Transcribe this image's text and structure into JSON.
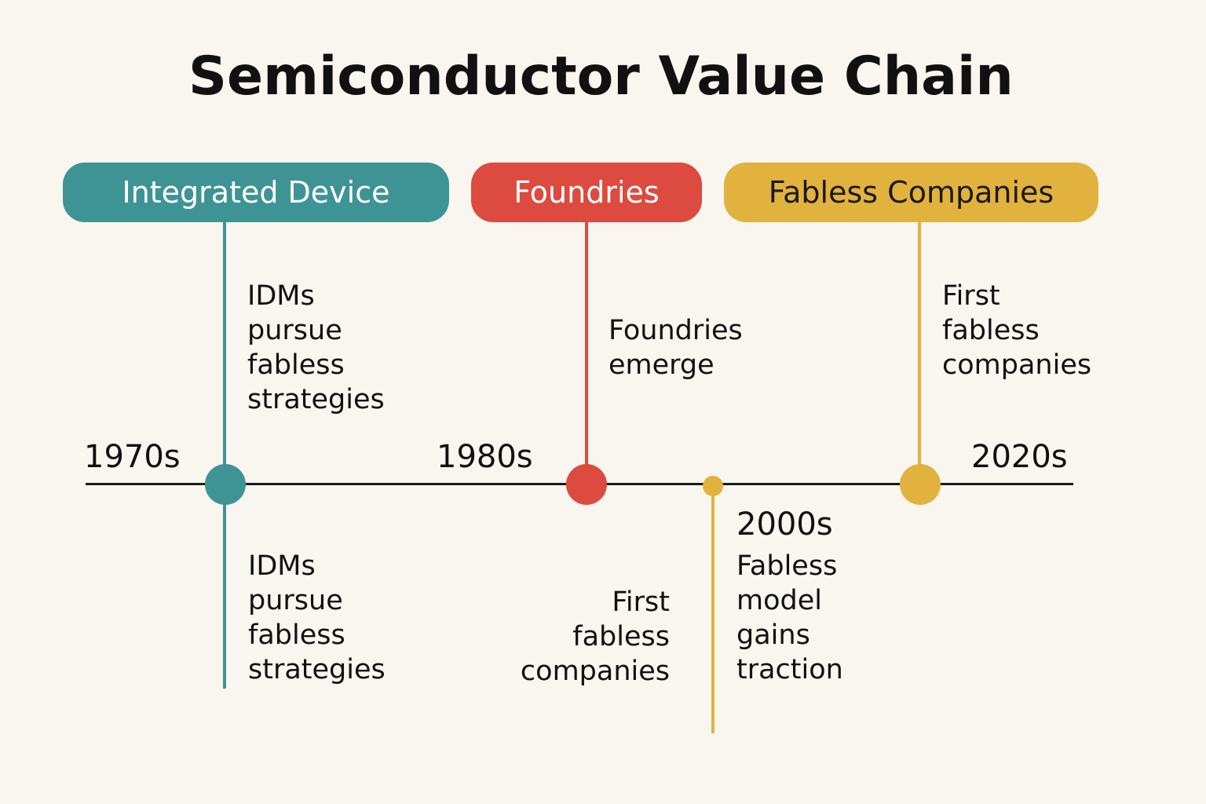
{
  "title": "Semiconductor Value Chain",
  "categories": [
    {
      "label": "Integrated Device",
      "color": "#3e9494"
    },
    {
      "label": "Foundries",
      "color": "#dd4a3f"
    },
    {
      "label": "Fabless Companies",
      "color": "#e2b23e"
    }
  ],
  "years": {
    "y1970s": "1970s",
    "y1980s": "1980s",
    "y2000s": "2000s",
    "y2020s": "2020s"
  },
  "events": {
    "idm_upper": [
      "IDMs",
      "pursue",
      "fabless",
      "strategies"
    ],
    "idm_lower": [
      "IDMs",
      "pursue",
      "fabless",
      "strategies"
    ],
    "foundries_emerge": [
      "Foundries",
      "emerge"
    ],
    "first_fabless_lower": [
      "First",
      "fabless",
      "companies"
    ],
    "fabless_traction": [
      "Fabless",
      "model",
      "gains",
      "traction"
    ],
    "first_fabless_upper": [
      "First",
      "fabless",
      "companies"
    ]
  },
  "colors": {
    "background": "#f9f6ef",
    "teal": "#3e9494",
    "red": "#dd4a3f",
    "gold": "#e2b23e",
    "axis": "#1a1a1a"
  }
}
